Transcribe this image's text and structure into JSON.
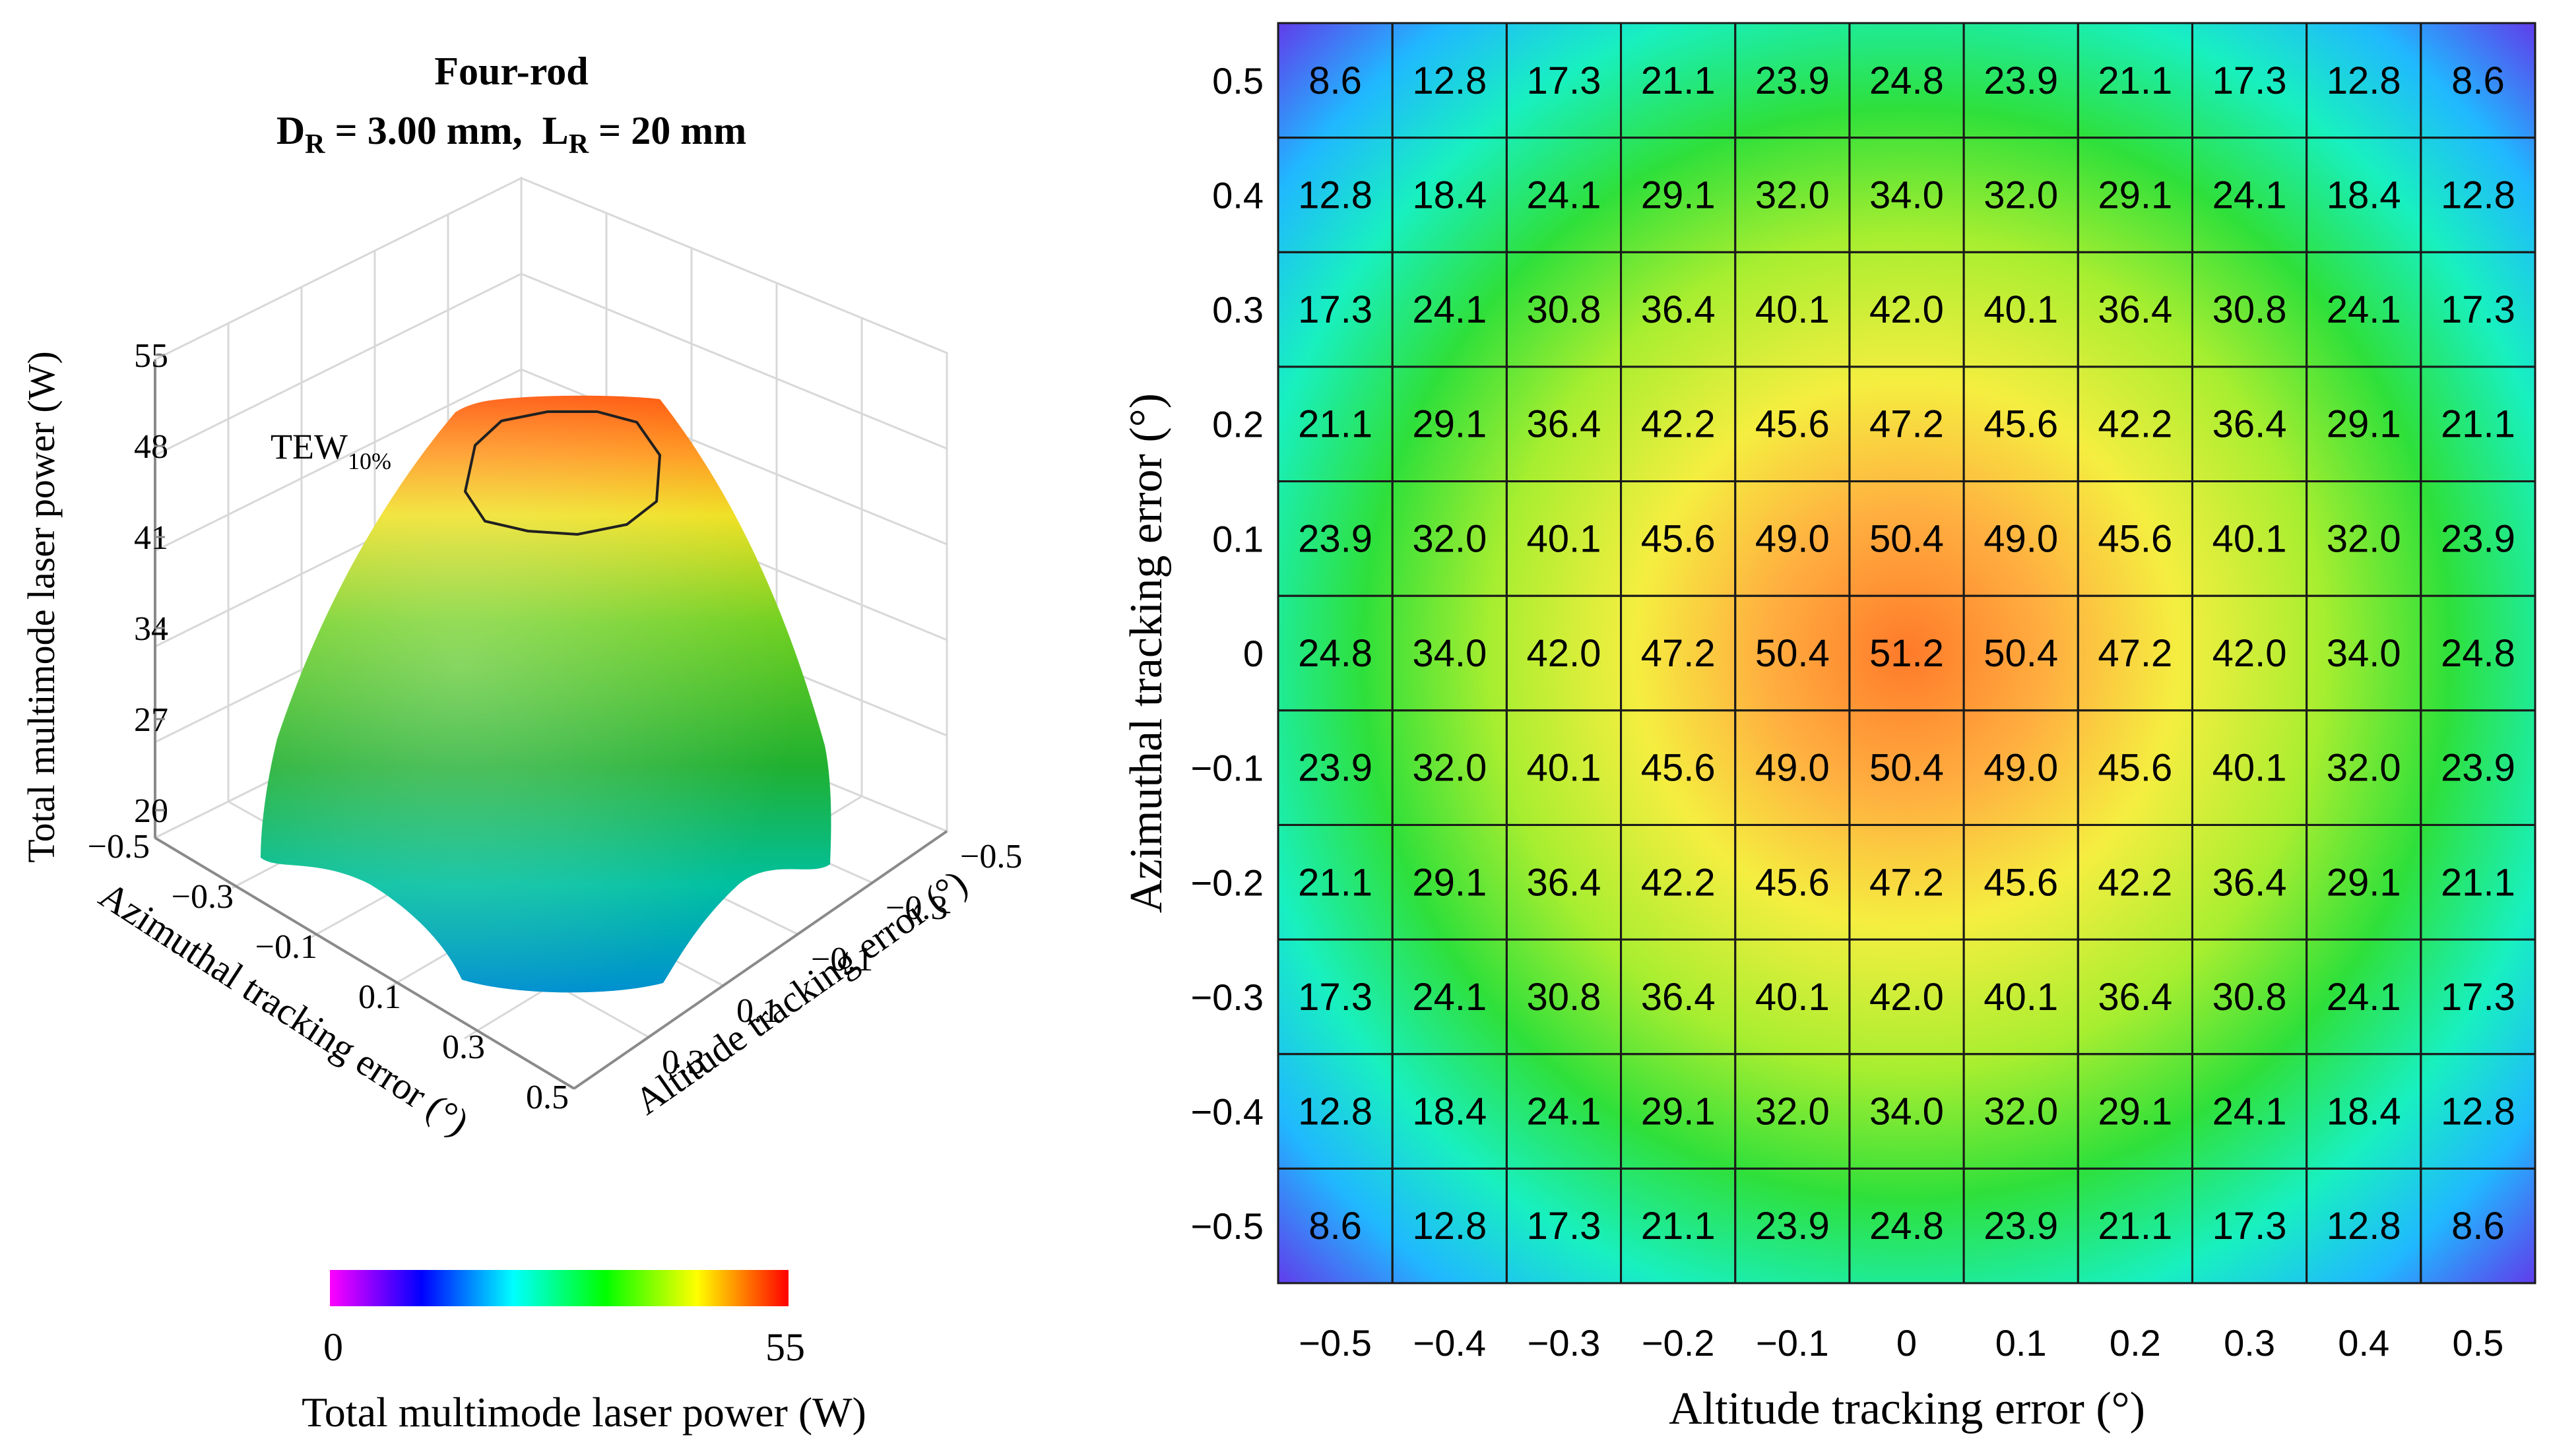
{
  "left_panel": {
    "title_line1": "Four-rod",
    "title_line2_parts": {
      "d": "D",
      "d_sub": "R",
      "d_eq": " = 3.00 mm,  ",
      "l": "L",
      "l_sub": "R",
      "l_eq": " = 20 mm"
    },
    "tew_label": "TEW",
    "tew_sub": "10%",
    "z_axis_label": "Total multimode laser power (W)",
    "z_ticks": [
      "20",
      "27",
      "34",
      "41",
      "48",
      "55"
    ],
    "left_axis_label": "Azimuthal tracking error (°)",
    "left_axis_ticks": [
      "−0.5",
      "−0.3",
      "−0.1",
      "0.1",
      "0.3",
      "0.5"
    ],
    "right_axis_label": "Altitude tracking error (°)",
    "right_axis_ticks": [
      "−0.5",
      "−0.3",
      "−0.1",
      "0.1",
      "0.3"
    ],
    "colorbar": {
      "min_label": "0",
      "max_label": "55",
      "label": "Total multimode laser power (W)",
      "colors": [
        "#ff00ff",
        "#8000ff",
        "#0000ff",
        "#0080ff",
        "#00ffff",
        "#00ff80",
        "#00ff00",
        "#80ff00",
        "#ffff00",
        "#ff8000",
        "#ff0000"
      ]
    }
  },
  "chart_data": {
    "type": "heatmap",
    "title": "Four-rod, D_R = 3.00 mm, L_R = 20 mm",
    "xlabel": "Altitude tracking error (°)",
    "ylabel": "Azimuthal tracking error (°)",
    "colorbar_label": "Total multimode laser power (W)",
    "colorbar_range": [
      0,
      55
    ],
    "x_ticks": [
      "−0.5",
      "−0.4",
      "−0.3",
      "−0.2",
      "−0.1",
      "0",
      "0.1",
      "0.2",
      "0.3",
      "0.4",
      "0.5"
    ],
    "y_ticks": [
      "0.5",
      "0.4",
      "0.3",
      "0.2",
      "0.1",
      "0",
      "−0.1",
      "−0.2",
      "−0.3",
      "−0.4",
      "−0.5"
    ],
    "values": [
      [
        "8.6",
        "12.8",
        "17.3",
        "21.1",
        "23.9",
        "24.8",
        "23.9",
        "21.1",
        "17.3",
        "12.8",
        "8.6"
      ],
      [
        "12.8",
        "18.4",
        "24.1",
        "29.1",
        "32.0",
        "34.0",
        "32.0",
        "29.1",
        "24.1",
        "18.4",
        "12.8"
      ],
      [
        "17.3",
        "24.1",
        "30.8",
        "36.4",
        "40.1",
        "42.0",
        "40.1",
        "36.4",
        "30.8",
        "24.1",
        "17.3"
      ],
      [
        "21.1",
        "29.1",
        "36.4",
        "42.2",
        "45.6",
        "47.2",
        "45.6",
        "42.2",
        "36.4",
        "29.1",
        "21.1"
      ],
      [
        "23.9",
        "32.0",
        "40.1",
        "45.6",
        "49.0",
        "50.4",
        "49.0",
        "45.6",
        "40.1",
        "32.0",
        "23.9"
      ],
      [
        "24.8",
        "34.0",
        "42.0",
        "47.2",
        "50.4",
        "51.2",
        "50.4",
        "47.2",
        "42.0",
        "34.0",
        "24.8"
      ],
      [
        "23.9",
        "32.0",
        "40.1",
        "45.6",
        "49.0",
        "50.4",
        "49.0",
        "45.6",
        "40.1",
        "32.0",
        "23.9"
      ],
      [
        "21.1",
        "29.1",
        "36.4",
        "42.2",
        "45.6",
        "47.2",
        "45.6",
        "42.2",
        "36.4",
        "29.1",
        "21.1"
      ],
      [
        "17.3",
        "24.1",
        "30.8",
        "36.4",
        "40.1",
        "42.0",
        "40.1",
        "36.4",
        "30.8",
        "24.1",
        "17.3"
      ],
      [
        "12.8",
        "18.4",
        "24.1",
        "29.1",
        "32.0",
        "34.0",
        "32.0",
        "29.1",
        "24.1",
        "18.4",
        "12.8"
      ],
      [
        "8.6",
        "12.8",
        "17.3",
        "21.1",
        "23.9",
        "24.8",
        "23.9",
        "21.1",
        "17.3",
        "12.8",
        "8.6"
      ]
    ]
  }
}
